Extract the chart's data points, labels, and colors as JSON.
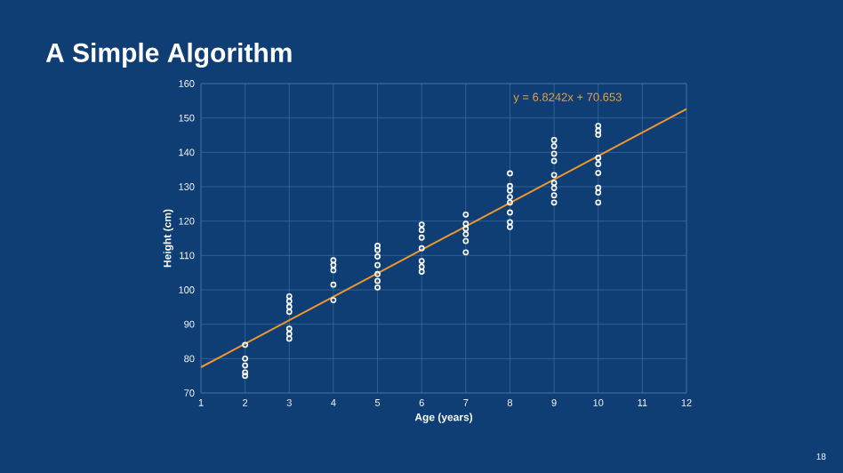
{
  "chart_data": {
    "type": "scatter",
    "title": "A Simple Algorithm",
    "xlabel": "Age (years)",
    "ylabel": "Height (cm)",
    "xlim": [
      1,
      12
    ],
    "ylim": [
      70,
      160
    ],
    "xticks": [
      1,
      2,
      3,
      4,
      5,
      6,
      7,
      8,
      9,
      10,
      11,
      12
    ],
    "yticks": [
      70,
      80,
      90,
      100,
      110,
      120,
      130,
      140,
      150,
      160
    ],
    "grid": true,
    "series": [
      {
        "color": "#ffffff",
        "marker": "circle",
        "x": [
          2,
          2,
          2,
          2,
          2,
          3,
          3,
          3,
          3,
          3,
          3,
          3,
          4,
          4,
          4,
          4,
          4,
          5,
          5,
          5,
          5,
          5,
          5,
          5,
          6,
          6,
          6,
          6,
          6,
          6,
          6,
          7,
          7,
          7,
          7,
          7,
          7,
          8,
          8,
          8,
          8,
          8,
          8,
          8,
          8,
          9,
          9,
          9,
          9,
          9,
          9,
          9,
          9,
          9,
          10,
          10,
          10,
          10,
          10,
          10,
          10,
          10,
          10
        ],
        "values": [
          84,
          80,
          78,
          76,
          75,
          98.1,
          96.7,
          95.1,
          93.6,
          88.7,
          87.2,
          85.8,
          108.6,
          107.2,
          105.7,
          101.5,
          97,
          112.8,
          111.6,
          109.7,
          107.2,
          104.6,
          102.6,
          100.7,
          119,
          117.4,
          115.2,
          112.1,
          108.4,
          106.7,
          105.3,
          121.9,
          119.2,
          117.8,
          116.2,
          114.2,
          110.9,
          133.9,
          130.2,
          128.9,
          127,
          125.4,
          122.5,
          119.7,
          118.3,
          143.6,
          141.8,
          139.6,
          137.5,
          133.4,
          131.1,
          129.6,
          127.5,
          125.4,
          147.7,
          146.3,
          145.1,
          138.4,
          136.6,
          134,
          129.7,
          128.3,
          125.4
        ]
      },
      {
        "type": "line",
        "color": "#f0962e",
        "marker": "none",
        "x": [
          1,
          12
        ],
        "values": [
          77.5,
          152.6
        ]
      }
    ],
    "annotations": [
      "y = 6.8242x + 70.653",
      "18"
    ]
  }
}
